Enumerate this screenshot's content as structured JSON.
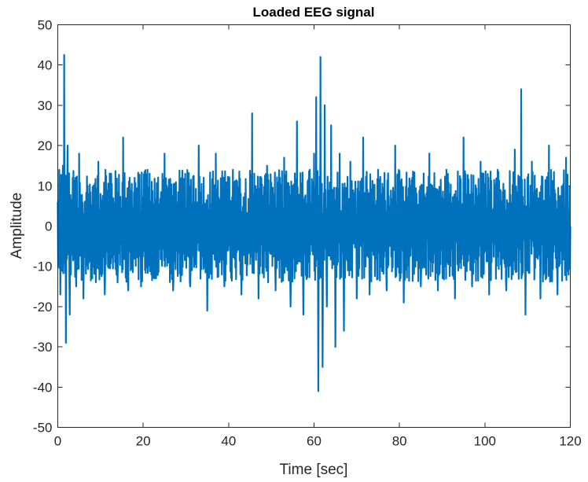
{
  "chart_data": {
    "type": "line",
    "title": "Loaded EEG signal",
    "xlabel": "Time [sec]",
    "ylabel": "Amplitude",
    "xlim": [
      0,
      120
    ],
    "ylim": [
      -50,
      50
    ],
    "xticks": [
      0,
      20,
      40,
      60,
      80,
      100,
      120
    ],
    "yticks": [
      -50,
      -40,
      -30,
      -20,
      -10,
      0,
      10,
      20,
      30,
      40,
      50
    ],
    "grid": false,
    "legend": "none",
    "color": "#0072BD",
    "series": [
      {
        "x": [
          0,
          0.6,
          1.2,
          1.5,
          1.9,
          2.3,
          2.8,
          3.5,
          4.3,
          5.0,
          6.0,
          7.0,
          8.0,
          9.5,
          11.0,
          12.5,
          14.0,
          15.3,
          16.5,
          18.0,
          19.5,
          21.0,
          23.0,
          25.0,
          27.0,
          29.0,
          31.0,
          33.0,
          35.0,
          37.0,
          39.0,
          41.0,
          43.0,
          45.5,
          47.0,
          49.0,
          51.0,
          53.0,
          54.5,
          56.0,
          57.5,
          59.0,
          60.0,
          60.5,
          61.0,
          61.5,
          62.0,
          62.5,
          63.0,
          64.0,
          65.0,
          66.0,
          67.0,
          68.5,
          70.0,
          71.5,
          73.0,
          75.0,
          77.0,
          79.0,
          81.0,
          83.0,
          85.0,
          87.0,
          89.0,
          91.0,
          93.0,
          95.0,
          97.0,
          99.0,
          101.0,
          103.0,
          105.0,
          107.0,
          108.5,
          109.5,
          111.0,
          113.0,
          115.0,
          117.0,
          119.0,
          120.0
        ],
        "y": [
          6,
          -17,
          15,
          42.5,
          -29,
          20,
          -22,
          12,
          -15,
          18,
          -18,
          10,
          -12,
          16,
          -17,
          13,
          -14,
          22,
          -16,
          12,
          -15,
          14,
          -13,
          18,
          -16,
          12,
          -15,
          20,
          -21,
          18,
          -15,
          14,
          -17,
          28,
          -18,
          15,
          -16,
          17,
          -20,
          26,
          -22,
          14,
          18,
          32,
          -41,
          42,
          -35,
          30,
          -20,
          25,
          -30,
          18,
          -26,
          16,
          -18,
          22,
          -17,
          14,
          -16,
          20,
          -19,
          12,
          -15,
          18,
          -16,
          14,
          -18,
          22,
          -15,
          16,
          -17,
          14,
          -16,
          19,
          34,
          -22,
          16,
          -18,
          20,
          -17,
          17,
          0
        ]
      }
    ]
  }
}
